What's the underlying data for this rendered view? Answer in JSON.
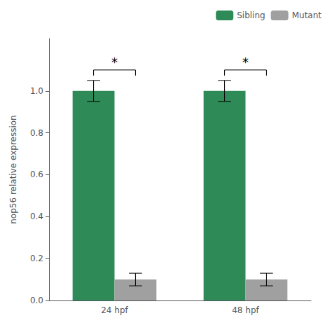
{
  "chart_data": {
    "type": "bar",
    "categories": [
      "24 hpf",
      "48 hpf"
    ],
    "series": [
      {
        "name": "Sibling",
        "color": "#2e8b57",
        "values": [
          1.0,
          1.0
        ],
        "errors": [
          0.05,
          0.05
        ]
      },
      {
        "name": "Mutant",
        "color": "#a0a0a0",
        "values": [
          0.1,
          0.1
        ],
        "errors": [
          0.03,
          0.03
        ]
      }
    ],
    "ylabel": "nop56 relative expression",
    "ylim": [
      0.0,
      1.25
    ],
    "yticks": [
      {
        "value": 0.0,
        "label": "0.0"
      },
      0.2,
      0.4,
      0.6,
      0.8,
      {
        "value": 1.0,
        "label": "1.0"
      }
    ],
    "annotations": [
      {
        "text": "*",
        "category": "24 hpf",
        "y": 1.1
      },
      {
        "text": "*",
        "category": "48 hpf",
        "y": 1.1
      }
    ],
    "legend": "upper right",
    "grid": false
  }
}
